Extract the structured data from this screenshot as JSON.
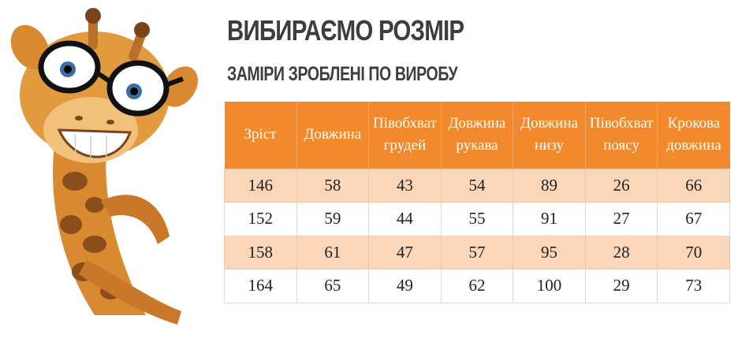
{
  "title": "ВИБИРАЄМО РОЗМІР",
  "subtitle": "ЗАМІРИ ЗРОБЛЕНІ ПО ВИРОБУ",
  "table": {
    "headers": [
      [
        "Зріст"
      ],
      [
        "Довжина"
      ],
      [
        "Півобхват",
        "грудей"
      ],
      [
        "Довжина",
        "рукава"
      ],
      [
        "Довжина",
        "низу"
      ],
      [
        "Півобхват",
        "поясу"
      ],
      [
        "Крокова",
        "довжина"
      ]
    ],
    "rows": [
      [
        "146",
        "58",
        "43",
        "54",
        "89",
        "26",
        "66"
      ],
      [
        "152",
        "59",
        "44",
        "55",
        "91",
        "27",
        "67"
      ],
      [
        "158",
        "61",
        "47",
        "57",
        "95",
        "28",
        "70"
      ],
      [
        "164",
        "65",
        "49",
        "62",
        "100",
        "29",
        "73"
      ]
    ]
  },
  "colors": {
    "header_bg": "#f28a2d",
    "alt_row_bg": "#fbd6b8",
    "title_color": "#3d3d3d"
  }
}
